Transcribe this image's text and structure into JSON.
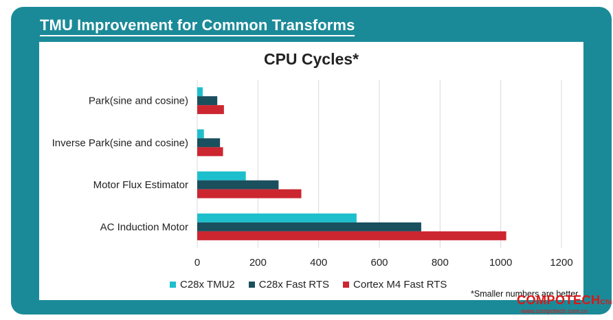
{
  "slide_title": "TMU Improvement for Common Transforms",
  "chart_data": {
    "type": "bar",
    "orientation": "horizontal",
    "title": "CPU Cycles*",
    "categories": [
      "Park(sine and cosine)",
      "Inverse Park(sine and cosine)",
      "Motor Flux Estimator",
      "AC Induction Motor"
    ],
    "series": [
      {
        "name": "C28x TMU2",
        "color": "#1ebfcc",
        "values": [
          18,
          22,
          160,
          525
        ]
      },
      {
        "name": "C28x Fast RTS",
        "color": "#1a4f5e",
        "values": [
          66,
          75,
          268,
          738
        ]
      },
      {
        "name": "Cortex M4 Fast RTS",
        "color": "#cc2630",
        "values": [
          88,
          85,
          343,
          1018
        ]
      }
    ],
    "xlim": [
      0,
      1200
    ],
    "xticks": [
      "0",
      "200",
      "400",
      "600",
      "800",
      "1000",
      "1200"
    ],
    "grid": true,
    "legend_position": "bottom"
  },
  "note": "*Smaller numbers are better",
  "watermark": {
    "brand": "COMPOTECH",
    "suffix": "China",
    "url": "www.compotech.com.cn"
  }
}
